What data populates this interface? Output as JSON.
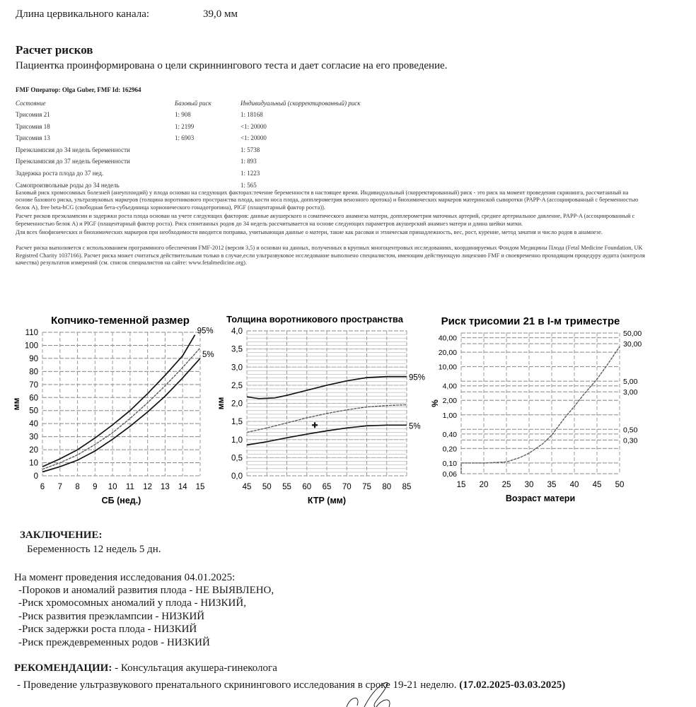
{
  "cervical": {
    "label": "Длина цервикального канала:",
    "value": "39,0 мм"
  },
  "risk_section": {
    "title": "Расчет рисков",
    "consent": "Пациентка проинформирована о цели скриннингового теста и дает согласие на его проведение.",
    "operator": "FMF Оператор: Olga Guber, FMF Id: 162964",
    "headers": [
      "Состояние",
      "Базовый риск",
      "Индивидуальный (скорректированный) риск"
    ],
    "rows": [
      [
        "Трисомия 21",
        "1: 908",
        "1: 18168"
      ],
      [
        "Трисомия 18",
        "1: 2199",
        "<1: 20000"
      ],
      [
        "Трисомия 13",
        "1: 6903",
        "<1: 20000"
      ],
      [
        "Преэклампсия до 34 недель беременности",
        "",
        "1: 5738"
      ],
      [
        "Преэклампсия до 37 недель беременности",
        "",
        "1: 893"
      ],
      [
        "Задержка роста плода до 37 нед.",
        "",
        "1: 1223"
      ],
      [
        "Самопроизвольные роды до 34 недель",
        "",
        "1: 565"
      ]
    ],
    "paragraphs": [
      "Базовый риск хромосомных болезней (анеуплоидий) у плода основан на следующих факторах:течение беременности в настоящее время. Индивидуальный (скорректированный) риск - это риск на момент проведения скрининга, рассчитанный на основе базового риска, ультразвуковых маркеров (толщина воротникового пространства плода, кости носа плода, допплерометрия венозного протока) и биохимических маркеров материнской сыворотки (PAPP-A (ассоциированный с беременностью белок A), free beta-hCG (свободная бета-субъединица хорионического гонадотропина), PlGF (плацентарный фактор роста)).",
      "Расчет рисков преэклампсии и задержки роста плода основан на учете следующих факторов: данные акушерского и соматического анамнеза матери, допплерометрия маточных артерий, среднее артериальное давление, PAPP-A (ассоциированный с беременностью белок A) и PlGF (плацентарный фактор роста). Риск спонтанных родов до 34 недель рассчитывается на основе следующих параметров акушерский анамнез матери и длина шейки матки.",
      "Для всех биофизических и биохимических маркеров при необходимости вводится поправка, учитывающая данные о матери, такие как расовая и этническая принадлежность, вес, рост, курение, метод зачатия и число родов в анамнезе.",
      "Расчет риска выполняется с использованием программного обеспечения FMF-2012 (версия 3,5) и основан на данных, полученных в крупных многоцентровых исследованиях, координируемых Фондом Медицины Плода (Fetal Medicine Foundation, UK Registred Charity 1037166). Расчет риска может считаться действительным только в случае,если ультразвуковое исследование выполнено специалистом, имеющим действующую лицензию FMF и своевременно проходящим процедуру аудита (контроля качества) результатов измерений (см. список специалистов на сайте: www.fetalmedicine.org)."
    ]
  },
  "chart_data": [
    {
      "type": "line",
      "title": "Копчико-теменной размер",
      "xlabel": "СБ (нед.)",
      "ylabel": "мм",
      "xlim": [
        6,
        15
      ],
      "ylim": [
        0,
        110
      ],
      "xticks": [
        "6",
        "7",
        "8",
        "9",
        "10",
        "11",
        "12",
        "13",
        "14",
        "15"
      ],
      "yticks": [
        "0",
        "10",
        "20",
        "30",
        "40",
        "50",
        "60",
        "70",
        "80",
        "90",
        "100",
        "110"
      ],
      "grid": true,
      "series": [
        {
          "name": "95%",
          "style": "solid",
          "x": [
            6,
            7,
            8,
            9,
            10,
            11,
            12,
            13,
            14,
            14.7
          ],
          "y": [
            7,
            13,
            20,
            29,
            39,
            50,
            63,
            77,
            92,
            108
          ]
        },
        {
          "style": "dashed",
          "x": [
            6,
            7,
            8,
            9,
            10,
            11,
            12,
            13,
            14,
            15
          ],
          "y": [
            5,
            10,
            16,
            24,
            33,
            44,
            56,
            69,
            83,
            98
          ]
        },
        {
          "name": "5%",
          "style": "solid",
          "x": [
            6,
            7,
            8,
            9,
            10,
            11,
            12,
            13,
            14,
            15
          ],
          "y": [
            3,
            7,
            12,
            19,
            28,
            38,
            49,
            61,
            75,
            90
          ]
        }
      ]
    },
    {
      "type": "line",
      "title": "Толщина воротникового пространства",
      "xlabel": "КТР (мм)",
      "ylabel": "мм",
      "xlim": [
        45,
        85
      ],
      "ylim": [
        0,
        4
      ],
      "xticks": [
        "45",
        "50",
        "55",
        "60",
        "65",
        "70",
        "75",
        "80",
        "85"
      ],
      "yticks": [
        "0,0",
        "0,5",
        "1,0",
        "1,5",
        "2,0",
        "2,5",
        "3,0",
        "3,5",
        "4,0"
      ],
      "grid": true,
      "series": [
        {
          "name": "95%",
          "style": "solid",
          "x": [
            45,
            48,
            52,
            55,
            60,
            65,
            70,
            75,
            80,
            85
          ],
          "y": [
            2.18,
            2.13,
            2.15,
            2.22,
            2.36,
            2.5,
            2.62,
            2.71,
            2.74,
            2.74
          ]
        },
        {
          "style": "dashed",
          "x": [
            45,
            50,
            55,
            60,
            65,
            70,
            75,
            80,
            85
          ],
          "y": [
            1.2,
            1.32,
            1.46,
            1.6,
            1.72,
            1.82,
            1.9,
            1.94,
            1.96
          ]
        },
        {
          "name": "5%",
          "style": "solid",
          "x": [
            45,
            50,
            55,
            60,
            65,
            70,
            75,
            80,
            85
          ],
          "y": [
            0.85,
            0.94,
            1.05,
            1.15,
            1.24,
            1.32,
            1.38,
            1.4,
            1.4
          ]
        }
      ],
      "points": [
        {
          "x": 62,
          "y": 1.4,
          "marker": "cross"
        }
      ]
    },
    {
      "type": "line",
      "title": "Риск трисомии 21 в I-м триместре",
      "xlabel": "Возраст матери",
      "ylabel": "%",
      "xlim": [
        15,
        50
      ],
      "ylim": [
        0.06,
        50
      ],
      "yscale": "log",
      "xticks": [
        "15",
        "20",
        "25",
        "30",
        "35",
        "40",
        "45",
        "50"
      ],
      "yticks": [
        "0,06",
        "0,10",
        "0,20",
        "0,30",
        "0,40",
        "0,50",
        "1,00",
        "2,00",
        "3,00",
        "4,00",
        "5,00",
        "10,00",
        "20,00",
        "30,00",
        "40,00",
        "50,00"
      ],
      "grid": true,
      "series": [
        {
          "style": "dashed",
          "x": [
            15,
            15,
            20,
            25,
            28,
            30,
            33,
            35,
            38,
            40,
            42,
            45,
            47,
            50
          ],
          "y": [
            0.06,
            0.1,
            0.1,
            0.105,
            0.13,
            0.16,
            0.25,
            0.38,
            0.9,
            1.5,
            2.6,
            5.5,
            10,
            26
          ]
        }
      ]
    }
  ],
  "conclusion": {
    "title": "ЗАКЛЮЧЕНИЕ:",
    "pregnancy": "Беременность 12 недель 5 дн.",
    "intro": "На момент проведения исследования 04.01.2025:",
    "items": [
      "-Пороков и аномалий развития плода - НЕ ВЫЯВЛЕНО,",
      "-Риск хромосомных аномалий у плода - НИЗКИЙ,",
      "-Риск развития преэклампсии - НИЗКИЙ",
      "-Риск задержки роста плода - НИЗКИЙ",
      "-Риск преждевременных родов - НИЗКИЙ"
    ]
  },
  "recommendations": {
    "title": "РЕКОМЕНДАЦИИ:",
    "first": " - Консультация акушера-гинеколога",
    "second": " - Проведение ультразвукового пренатального скринингового исследования в сроке 19-21 неделю. ",
    "dates": "(17.02.2025-03.03.2025)"
  }
}
